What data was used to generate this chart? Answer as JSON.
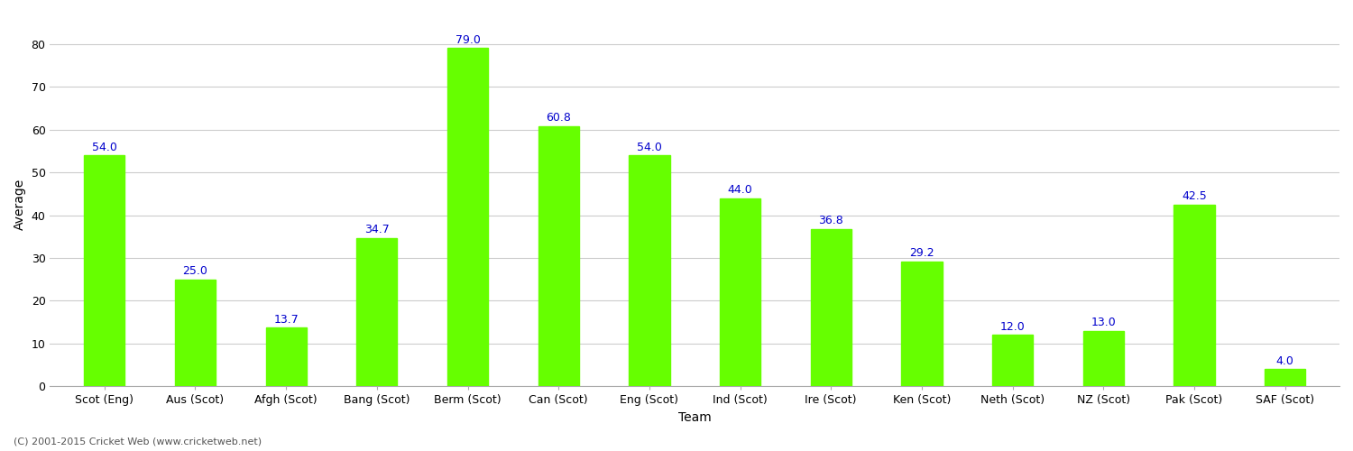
{
  "categories": [
    "Scot (Eng)",
    "Aus (Scot)",
    "Afgh (Scot)",
    "Bang (Scot)",
    "Berm (Scot)",
    "Can (Scot)",
    "Eng (Scot)",
    "Ind (Scot)",
    "Ire (Scot)",
    "Ken (Scot)",
    "Neth (Scot)",
    "NZ (Scot)",
    "Pak (Scot)",
    "SAF (Scot)"
  ],
  "values": [
    54.0,
    25.0,
    13.7,
    34.7,
    79.0,
    60.8,
    54.0,
    44.0,
    36.8,
    29.2,
    12.0,
    13.0,
    42.5,
    4.0
  ],
  "bar_color": "#66ff00",
  "bar_edge_color": "#66ff00",
  "xlabel": "Team",
  "ylabel": "Average",
  "ylim": [
    0,
    85
  ],
  "yticks": [
    0,
    10,
    20,
    30,
    40,
    50,
    60,
    70,
    80
  ],
  "value_label_color": "#0000cc",
  "value_label_fontsize": 9,
  "axis_label_fontsize": 10,
  "tick_label_fontsize": 9,
  "background_color": "#ffffff",
  "grid_color": "#cccccc",
  "bar_width": 0.45,
  "copyright_text": "(C) 2001-2015 Cricket Web (www.cricketweb.net)",
  "copyright_fontsize": 8,
  "copyright_color": "#555555"
}
